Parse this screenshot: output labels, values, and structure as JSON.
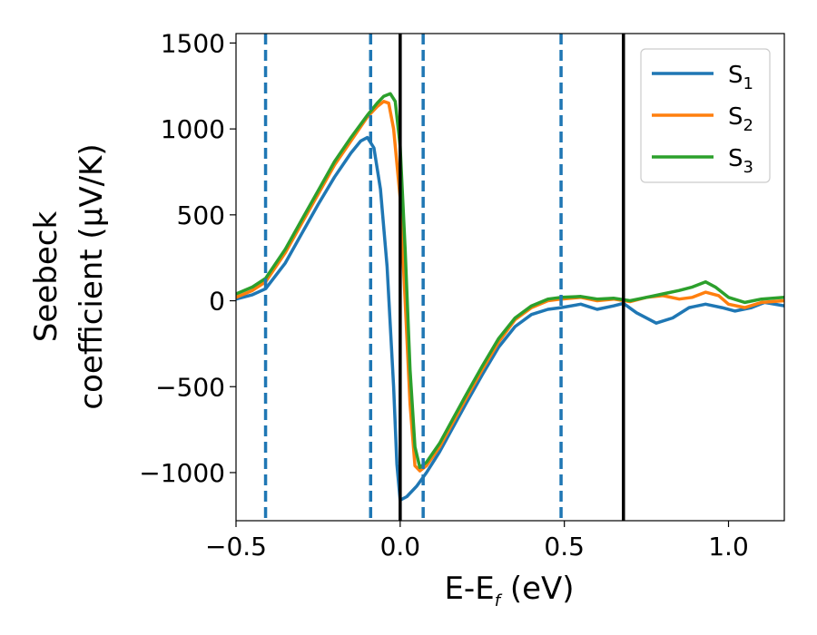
{
  "chart_data": {
    "type": "line",
    "xlabel": "E-E",
    "xlabel_sub": "f",
    "xlabel_unit": " (eV)",
    "ylabel_line1": "Seebeck",
    "ylabel_line2": "coefficient  (μV/K)",
    "xlim": [
      -0.5,
      1.17
    ],
    "ylim": [
      -1280,
      1555
    ],
    "x_ticks": [
      -0.5,
      0.0,
      0.5,
      1.0
    ],
    "x_tick_labels": [
      "−0.5",
      "0.0",
      "0.5",
      "1.0"
    ],
    "y_ticks": [
      -1000,
      -500,
      0,
      500,
      1000,
      1500
    ],
    "y_tick_labels": [
      "−1000",
      "−500",
      "0",
      "500",
      "1000",
      "1500"
    ],
    "grid": false,
    "legend_position": "top-right",
    "dashed_vlines": [
      -0.41,
      -0.09,
      0.07,
      0.49
    ],
    "dashed_vline_color": "#1f77b4",
    "solid_vlines": [
      0.0,
      0.68
    ],
    "solid_vline_color": "#000000",
    "series": [
      {
        "name": "S",
        "sub": "1",
        "color": "#1f77b4",
        "points": [
          [
            -0.5,
            10
          ],
          [
            -0.45,
            35
          ],
          [
            -0.41,
            70
          ],
          [
            -0.35,
            220
          ],
          [
            -0.3,
            390
          ],
          [
            -0.25,
            560
          ],
          [
            -0.2,
            720
          ],
          [
            -0.15,
            860
          ],
          [
            -0.12,
            930
          ],
          [
            -0.1,
            950
          ],
          [
            -0.08,
            890
          ],
          [
            -0.06,
            650
          ],
          [
            -0.04,
            200
          ],
          [
            -0.02,
            -500
          ],
          [
            -0.01,
            -950
          ],
          [
            0.0,
            -1160
          ],
          [
            0.02,
            -1140
          ],
          [
            0.05,
            -1080
          ],
          [
            0.08,
            -1000
          ],
          [
            0.12,
            -880
          ],
          [
            0.16,
            -740
          ],
          [
            0.2,
            -600
          ],
          [
            0.25,
            -430
          ],
          [
            0.3,
            -270
          ],
          [
            0.35,
            -150
          ],
          [
            0.4,
            -80
          ],
          [
            0.45,
            -50
          ],
          [
            0.49,
            -40
          ],
          [
            0.55,
            -20
          ],
          [
            0.6,
            -50
          ],
          [
            0.65,
            -30
          ],
          [
            0.68,
            -15
          ],
          [
            0.72,
            -70
          ],
          [
            0.78,
            -130
          ],
          [
            0.83,
            -100
          ],
          [
            0.88,
            -40
          ],
          [
            0.93,
            -20
          ],
          [
            0.98,
            -40
          ],
          [
            1.02,
            -60
          ],
          [
            1.07,
            -40
          ],
          [
            1.11,
            -10
          ],
          [
            1.17,
            -30
          ]
        ]
      },
      {
        "name": "S",
        "sub": "2",
        "color": "#ff7f0e",
        "points": [
          [
            -0.5,
            20
          ],
          [
            -0.45,
            60
          ],
          [
            -0.41,
            110
          ],
          [
            -0.35,
            280
          ],
          [
            -0.3,
            450
          ],
          [
            -0.25,
            620
          ],
          [
            -0.2,
            790
          ],
          [
            -0.15,
            930
          ],
          [
            -0.1,
            1070
          ],
          [
            -0.07,
            1130
          ],
          [
            -0.05,
            1160
          ],
          [
            -0.035,
            1150
          ],
          [
            -0.02,
            1000
          ],
          [
            0.0,
            600
          ],
          [
            0.015,
            0
          ],
          [
            0.03,
            -600
          ],
          [
            0.045,
            -960
          ],
          [
            0.06,
            -990
          ],
          [
            0.08,
            -960
          ],
          [
            0.12,
            -850
          ],
          [
            0.16,
            -710
          ],
          [
            0.2,
            -570
          ],
          [
            0.25,
            -400
          ],
          [
            0.3,
            -240
          ],
          [
            0.35,
            -110
          ],
          [
            0.4,
            -40
          ],
          [
            0.45,
            0
          ],
          [
            0.49,
            10
          ],
          [
            0.55,
            20
          ],
          [
            0.6,
            0
          ],
          [
            0.65,
            10
          ],
          [
            0.7,
            -5
          ],
          [
            0.75,
            20
          ],
          [
            0.8,
            30
          ],
          [
            0.85,
            10
          ],
          [
            0.89,
            20
          ],
          [
            0.93,
            50
          ],
          [
            0.97,
            30
          ],
          [
            1.0,
            -20
          ],
          [
            1.05,
            -40
          ],
          [
            1.1,
            -10
          ],
          [
            1.17,
            0
          ]
        ]
      },
      {
        "name": "S",
        "sub": "3",
        "color": "#2ca02c",
        "points": [
          [
            -0.5,
            40
          ],
          [
            -0.45,
            80
          ],
          [
            -0.41,
            130
          ],
          [
            -0.35,
            300
          ],
          [
            -0.3,
            470
          ],
          [
            -0.25,
            640
          ],
          [
            -0.2,
            810
          ],
          [
            -0.15,
            950
          ],
          [
            -0.1,
            1080
          ],
          [
            -0.07,
            1150
          ],
          [
            -0.05,
            1190
          ],
          [
            -0.03,
            1205
          ],
          [
            -0.015,
            1160
          ],
          [
            0.0,
            900
          ],
          [
            0.015,
            300
          ],
          [
            0.03,
            -400
          ],
          [
            0.045,
            -850
          ],
          [
            0.06,
            -970
          ],
          [
            0.08,
            -940
          ],
          [
            0.12,
            -830
          ],
          [
            0.16,
            -690
          ],
          [
            0.2,
            -550
          ],
          [
            0.25,
            -380
          ],
          [
            0.3,
            -220
          ],
          [
            0.35,
            -100
          ],
          [
            0.4,
            -30
          ],
          [
            0.45,
            10
          ],
          [
            0.49,
            20
          ],
          [
            0.55,
            25
          ],
          [
            0.6,
            10
          ],
          [
            0.65,
            15
          ],
          [
            0.7,
            0
          ],
          [
            0.75,
            20
          ],
          [
            0.8,
            40
          ],
          [
            0.85,
            60
          ],
          [
            0.89,
            80
          ],
          [
            0.93,
            110
          ],
          [
            0.96,
            80
          ],
          [
            1.0,
            20
          ],
          [
            1.05,
            -10
          ],
          [
            1.1,
            10
          ],
          [
            1.17,
            20
          ]
        ]
      }
    ]
  }
}
